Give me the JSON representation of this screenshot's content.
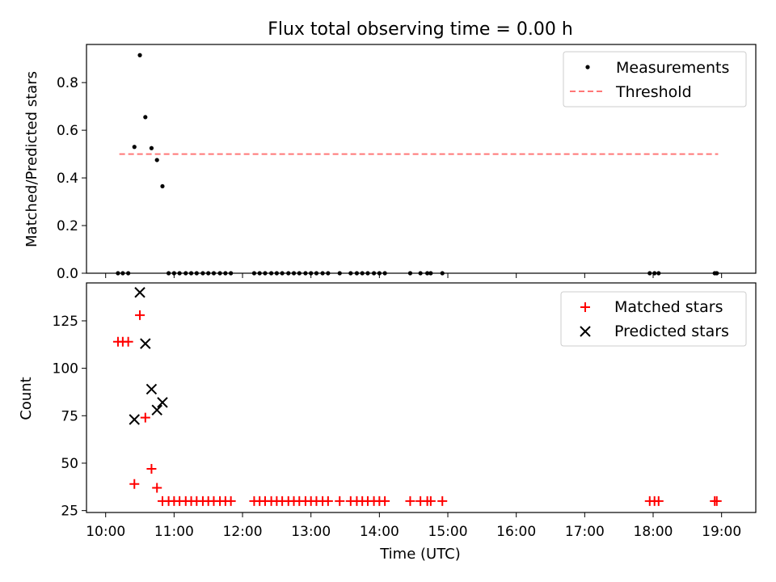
{
  "title": "Flux total observing time = 0.00 h",
  "chart_data": [
    {
      "type": "scatter",
      "ylabel": "Matched/Predicted stars",
      "xlim": [
        9.72,
        19.5
      ],
      "ylim": [
        0,
        0.96
      ],
      "yticks": [
        "0.0",
        "0.2",
        "0.4",
        "0.6",
        "0.8"
      ],
      "threshold": {
        "value": 0.5,
        "x": [
          10.2,
          18.95
        ],
        "color": "#ff7777"
      },
      "legend": [
        "Measurements",
        "Threshold"
      ],
      "legend_loc": "upper right",
      "series": [
        {
          "name": "Measurements",
          "color": "#000000",
          "points": [
            [
              10.18,
              0
            ],
            [
              10.25,
              0
            ],
            [
              10.33,
              0
            ],
            [
              10.42,
              0.53
            ],
            [
              10.5,
              0.915
            ],
            [
              10.58,
              0.655
            ],
            [
              10.67,
              0.525
            ],
            [
              10.75,
              0.475
            ],
            [
              10.83,
              0.365
            ],
            [
              10.92,
              0
            ],
            [
              11.0,
              0
            ],
            [
              11.08,
              0
            ],
            [
              11.17,
              0
            ],
            [
              11.25,
              0
            ],
            [
              11.33,
              0
            ],
            [
              11.42,
              0
            ],
            [
              11.5,
              0
            ],
            [
              11.58,
              0
            ],
            [
              11.67,
              0
            ],
            [
              11.75,
              0
            ],
            [
              11.83,
              0
            ],
            [
              12.17,
              0
            ],
            [
              12.25,
              0
            ],
            [
              12.33,
              0
            ],
            [
              12.42,
              0
            ],
            [
              12.5,
              0
            ],
            [
              12.58,
              0
            ],
            [
              12.67,
              0
            ],
            [
              12.75,
              0
            ],
            [
              12.83,
              0
            ],
            [
              12.92,
              0
            ],
            [
              13.0,
              0
            ],
            [
              13.08,
              0
            ],
            [
              13.17,
              0
            ],
            [
              13.25,
              0
            ],
            [
              13.42,
              0
            ],
            [
              13.58,
              0
            ],
            [
              13.67,
              0
            ],
            [
              13.75,
              0
            ],
            [
              13.83,
              0
            ],
            [
              13.92,
              0
            ],
            [
              14.0,
              0
            ],
            [
              14.08,
              0
            ],
            [
              14.45,
              0
            ],
            [
              14.6,
              0
            ],
            [
              14.7,
              0
            ],
            [
              14.75,
              0
            ],
            [
              14.92,
              0
            ],
            [
              17.95,
              0
            ],
            [
              18.02,
              0
            ],
            [
              18.08,
              0
            ],
            [
              18.9,
              0
            ],
            [
              18.93,
              0
            ]
          ]
        }
      ]
    },
    {
      "type": "scatter",
      "xlabel": "Time (UTC)",
      "ylabel": "Count",
      "xlim": [
        9.72,
        19.5
      ],
      "ylim": [
        24,
        145
      ],
      "yticks": [
        "25",
        "50",
        "75",
        "100",
        "125"
      ],
      "xticks": [
        "10:00",
        "11:00",
        "12:00",
        "13:00",
        "14:00",
        "15:00",
        "16:00",
        "17:00",
        "18:00",
        "19:00"
      ],
      "legend": [
        "Matched stars",
        "Predicted stars"
      ],
      "legend_loc": "upper right",
      "series": [
        {
          "name": "Matched stars",
          "marker": "plus",
          "color": "#ff0000",
          "points": [
            [
              10.18,
              114
            ],
            [
              10.25,
              114
            ],
            [
              10.33,
              114
            ],
            [
              10.42,
              39
            ],
            [
              10.5,
              128
            ],
            [
              10.58,
              74
            ],
            [
              10.67,
              47
            ],
            [
              10.75,
              37
            ],
            [
              10.83,
              30
            ],
            [
              10.92,
              30
            ],
            [
              11.0,
              30
            ],
            [
              11.08,
              30
            ],
            [
              11.17,
              30
            ],
            [
              11.25,
              30
            ],
            [
              11.33,
              30
            ],
            [
              11.42,
              30
            ],
            [
              11.5,
              30
            ],
            [
              11.58,
              30
            ],
            [
              11.67,
              30
            ],
            [
              11.75,
              30
            ],
            [
              11.83,
              30
            ],
            [
              12.17,
              30
            ],
            [
              12.25,
              30
            ],
            [
              12.33,
              30
            ],
            [
              12.42,
              30
            ],
            [
              12.5,
              30
            ],
            [
              12.58,
              30
            ],
            [
              12.67,
              30
            ],
            [
              12.75,
              30
            ],
            [
              12.83,
              30
            ],
            [
              12.92,
              30
            ],
            [
              13.0,
              30
            ],
            [
              13.08,
              30
            ],
            [
              13.17,
              30
            ],
            [
              13.25,
              30
            ],
            [
              13.42,
              30
            ],
            [
              13.58,
              30
            ],
            [
              13.67,
              30
            ],
            [
              13.75,
              30
            ],
            [
              13.83,
              30
            ],
            [
              13.92,
              30
            ],
            [
              14.0,
              30
            ],
            [
              14.08,
              30
            ],
            [
              14.45,
              30
            ],
            [
              14.6,
              30
            ],
            [
              14.7,
              30
            ],
            [
              14.75,
              30
            ],
            [
              14.92,
              30
            ],
            [
              17.95,
              30
            ],
            [
              18.02,
              30
            ],
            [
              18.08,
              30
            ],
            [
              18.9,
              30
            ],
            [
              18.93,
              30
            ]
          ]
        },
        {
          "name": "Predicted stars",
          "marker": "x",
          "color": "#000000",
          "points": [
            [
              10.42,
              73
            ],
            [
              10.5,
              140
            ],
            [
              10.58,
              113
            ],
            [
              10.67,
              89
            ],
            [
              10.75,
              78
            ],
            [
              10.83,
              82
            ]
          ]
        }
      ]
    }
  ]
}
